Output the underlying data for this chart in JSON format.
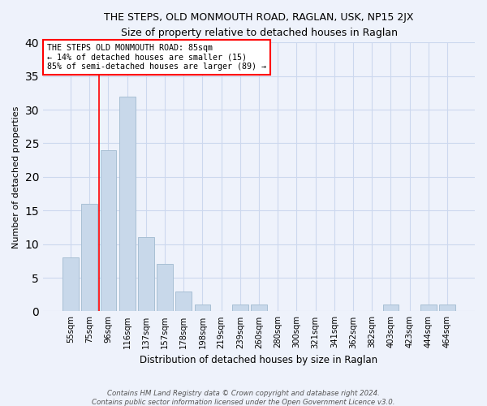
{
  "title": "THE STEPS, OLD MONMOUTH ROAD, RAGLAN, USK, NP15 2JX",
  "subtitle": "Size of property relative to detached houses in Raglan",
  "xlabel": "Distribution of detached houses by size in Raglan",
  "ylabel": "Number of detached properties",
  "footer_line1": "Contains HM Land Registry data © Crown copyright and database right 2024.",
  "footer_line2": "Contains public sector information licensed under the Open Government Licence v3.0.",
  "categories": [
    "55sqm",
    "75sqm",
    "96sqm",
    "116sqm",
    "137sqm",
    "157sqm",
    "178sqm",
    "198sqm",
    "219sqm",
    "239sqm",
    "260sqm",
    "280sqm",
    "300sqm",
    "321sqm",
    "341sqm",
    "362sqm",
    "382sqm",
    "403sqm",
    "423sqm",
    "444sqm",
    "464sqm"
  ],
  "values": [
    8,
    16,
    24,
    32,
    11,
    7,
    3,
    1,
    0,
    1,
    1,
    0,
    0,
    0,
    0,
    0,
    0,
    1,
    0,
    1,
    1
  ],
  "bar_color": "#c8d8ea",
  "bar_edge_color": "#a8bfd4",
  "red_line_x": 1.5,
  "annotation_title": "THE STEPS OLD MONMOUTH ROAD: 85sqm",
  "annotation_line1": "← 14% of detached houses are smaller (15)",
  "annotation_line2": "85% of semi-detached houses are larger (89) →",
  "ylim": [
    0,
    40
  ],
  "yticks": [
    0,
    5,
    10,
    15,
    20,
    25,
    30,
    35,
    40
  ],
  "grid_color": "#ccd8ee",
  "background_color": "#eef2fb"
}
